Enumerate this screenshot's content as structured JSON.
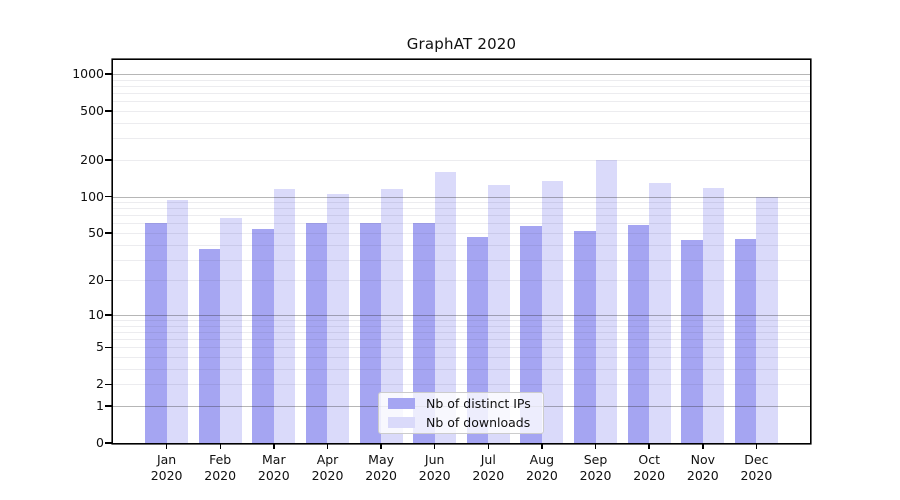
{
  "title": "GraphAT 2020",
  "colors": {
    "ips": "#a5a5f2",
    "downloads": "#dadafa",
    "grid_major": "#b4b4b4",
    "grid_minor": "#ebebeb",
    "frame": "#000000",
    "text": "#111111",
    "legend_border": "#cccccc",
    "background": "#ffffff"
  },
  "chart_data": {
    "type": "bar",
    "title": "GraphAT 2020",
    "xlabel": "",
    "ylabel": "",
    "grid": "on",
    "yscale": "log1p",
    "ylim": [
      0,
      1300
    ],
    "yticks_labeled": [
      0,
      1,
      2,
      5,
      10,
      20,
      50,
      100,
      200,
      500,
      1000
    ],
    "ygrid_major": [
      1,
      10,
      100,
      1000
    ],
    "legend_position": "lower center inside plot",
    "months": [
      "Jan",
      "Feb",
      "Mar",
      "Apr",
      "May",
      "Jun",
      "Jul",
      "Aug",
      "Sep",
      "Oct",
      "Nov",
      "Dec"
    ],
    "x_tick_line2": "2020",
    "categories": [
      "Jan 2020",
      "Feb 2020",
      "Mar 2020",
      "Apr 2020",
      "May 2020",
      "Jun 2020",
      "Jul 2020",
      "Aug 2020",
      "Sep 2020",
      "Oct 2020",
      "Nov 2020",
      "Dec 2020"
    ],
    "series": [
      {
        "name": "Nb of distinct IPs",
        "color": "#a5a5f2",
        "values": [
          61,
          37,
          54,
          61,
          60,
          60,
          46,
          57,
          52,
          58,
          44,
          45
        ]
      },
      {
        "name": "Nb of downloads",
        "color": "#dadafa",
        "values": [
          94,
          66,
          115,
          104,
          115,
          158,
          125,
          134,
          199,
          128,
          117,
          100
        ]
      }
    ]
  }
}
